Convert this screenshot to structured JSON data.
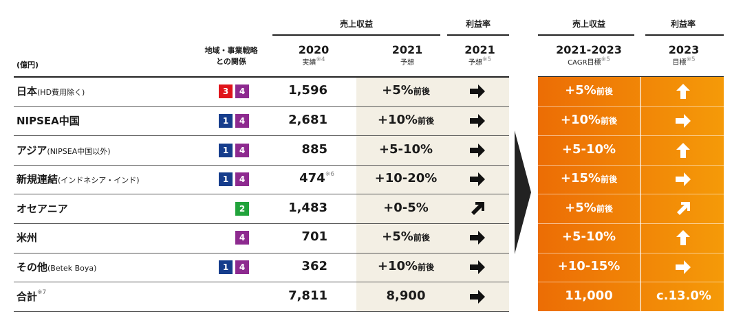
{
  "header": {
    "group_sales": "売上収益",
    "group_margin": "利益率",
    "group_sales_right": "売上収益",
    "group_margin_right": "利益率",
    "unit": "(億円)",
    "strategy": "地域・事業戦略",
    "strategy2": "との関係",
    "col2020_year": "2020",
    "col2020_sub": "実績",
    "col2020_note": "※4",
    "col2021_year": "2021",
    "col2021_sub": "予想",
    "col2021m_year": "2021",
    "col2021m_sub": "予想",
    "col2021m_note": "※5",
    "cagr_year": "2021-2023",
    "cagr_sub": "CAGR目標",
    "cagr_note": "※5",
    "m2023_year": "2023",
    "m2023_sub": "目標",
    "m2023_note": "※5"
  },
  "rows": [
    {
      "label": "日本",
      "label_note": "(HD費用除く)",
      "badges": [
        "3",
        "4"
      ],
      "v2020": "1,596",
      "v2020_note": "",
      "f2021": "+5%",
      "f2021_suffix": "前後",
      "m2021": "right-arrow",
      "cagr": "+5%",
      "cagr_suffix": "前後",
      "m2023": "up-arrow"
    },
    {
      "label": "NIPSEA中国",
      "label_note": "",
      "badges": [
        "1",
        "4"
      ],
      "v2020": "2,681",
      "v2020_note": "",
      "f2021": "+10%",
      "f2021_suffix": "前後",
      "m2021": "right-arrow",
      "cagr": "+10%",
      "cagr_suffix": "前後",
      "m2023": "right-arrow"
    },
    {
      "label": "アジア",
      "label_note": "(NIPSEA中国以外)",
      "badges": [
        "1",
        "4"
      ],
      "v2020": "885",
      "v2020_note": "",
      "f2021": "+5-10%",
      "f2021_suffix": "",
      "m2021": "right-arrow",
      "cagr": "+5-10%",
      "cagr_suffix": "",
      "m2023": "up-arrow"
    },
    {
      "label": "新規連結",
      "label_note": "(インドネシア・インド)",
      "badges": [
        "1",
        "4"
      ],
      "v2020": "474",
      "v2020_note": "※6",
      "f2021": "+10-20%",
      "f2021_suffix": "",
      "m2021": "right-arrow",
      "cagr": "+15%",
      "cagr_suffix": "前後",
      "m2023": "right-arrow"
    },
    {
      "label": "オセアニア",
      "label_note": "",
      "badges": [
        "2"
      ],
      "v2020": "1,483",
      "v2020_note": "",
      "f2021": "+0-5%",
      "f2021_suffix": "",
      "m2021": "diagonal-up-arrow",
      "cagr": "+5%",
      "cagr_suffix": "前後",
      "m2023": "diagonal-up-arrow"
    },
    {
      "label": "米州",
      "label_note": "",
      "badges": [
        "4"
      ],
      "v2020": "701",
      "v2020_note": "",
      "f2021": "+5%",
      "f2021_suffix": "前後",
      "m2021": "right-arrow",
      "cagr": "+5-10%",
      "cagr_suffix": "",
      "m2023": "up-arrow"
    },
    {
      "label": "その他",
      "label_note": "(Betek Boya)",
      "badges": [
        "1",
        "4"
      ],
      "v2020": "362",
      "v2020_note": "",
      "f2021": "+10%",
      "f2021_suffix": "前後",
      "m2021": "right-arrow",
      "cagr": "+10-15%",
      "cagr_suffix": "",
      "m2023": "right-arrow"
    },
    {
      "label": "合計",
      "label_note": "※7",
      "badges": [],
      "v2020": "7,811",
      "v2020_note": "",
      "f2021": "8,900",
      "f2021_suffix": "",
      "m2021": "right-arrow",
      "cagr": "11,000",
      "cagr_suffix": "",
      "m2023_text": "c.13.0%"
    }
  ],
  "colors": {
    "badge_1": "#163d8c",
    "badge_2": "#21a33b",
    "badge_3": "#e0141b",
    "badge_4": "#8d2a8f",
    "accent": "#ec6d05",
    "shade": "#f3efe4"
  }
}
